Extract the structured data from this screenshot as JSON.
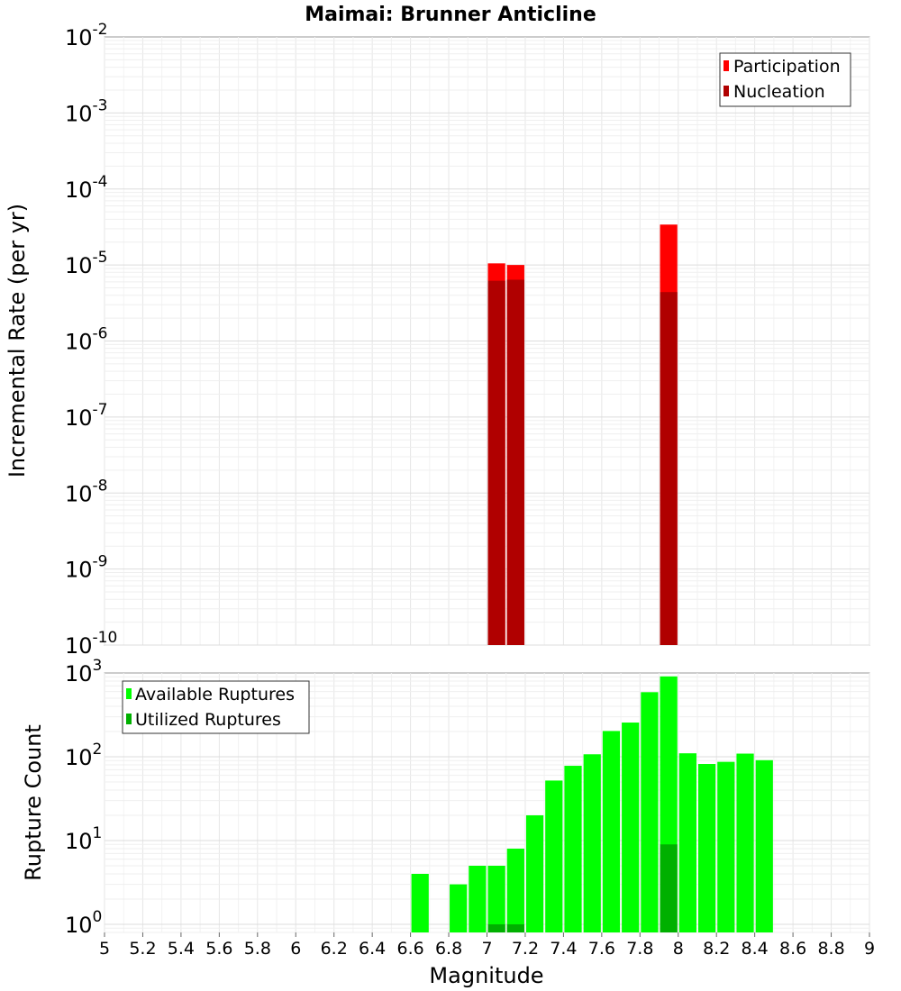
{
  "chart_data": [
    {
      "type": "bar",
      "scale": "log",
      "title": "Maimai: Brunner Anticline",
      "xlabel": "",
      "ylabel": "Incremental Rate (per yr)",
      "xlim": [
        5,
        9
      ],
      "ylim_exp": [
        -10,
        -2
      ],
      "y_tick_base": "10",
      "y_tick_exponents": [
        "-10",
        "-9",
        "-8",
        "-7",
        "-6",
        "-5",
        "-4",
        "-3",
        "-2"
      ],
      "bin_width": 0.1,
      "series": [
        {
          "name": "Participation",
          "color": "#ff0000",
          "points": [
            {
              "x": 7.05,
              "y": 1.05e-05
            },
            {
              "x": 7.15,
              "y": 1e-05
            },
            {
              "x": 7.95,
              "y": 3.4e-05
            }
          ]
        },
        {
          "name": "Nucleation",
          "color": "#b00000",
          "points": [
            {
              "x": 7.05,
              "y": 6.2e-06
            },
            {
              "x": 7.15,
              "y": 6.4e-06
            },
            {
              "x": 7.95,
              "y": 4.4e-06
            }
          ]
        }
      ],
      "legend": [
        "Participation",
        "Nucleation"
      ],
      "legend_position": "top-right"
    },
    {
      "type": "bar",
      "scale": "log",
      "xlabel": "Magnitude",
      "ylabel": "Rupture Count",
      "xlim": [
        5,
        9
      ],
      "x_ticks": [
        "5",
        "5.2",
        "5.4",
        "5.6",
        "5.8",
        "6",
        "6.2",
        "6.4",
        "6.6",
        "6.8",
        "7",
        "7.2",
        "7.4",
        "7.6",
        "7.8",
        "8",
        "8.2",
        "8.4",
        "8.6",
        "8.8",
        "9"
      ],
      "ylim": [
        0.8,
        1000
      ],
      "y_tick_base": "10",
      "y_tick_exponents": [
        "0",
        "1",
        "2",
        "3"
      ],
      "bin_width": 0.1,
      "series": [
        {
          "name": "Available Ruptures",
          "color": "#00ff00",
          "points": [
            {
              "x": 6.65,
              "y": 4
            },
            {
              "x": 6.85,
              "y": 3
            },
            {
              "x": 6.95,
              "y": 5
            },
            {
              "x": 7.05,
              "y": 5
            },
            {
              "x": 7.15,
              "y": 8
            },
            {
              "x": 7.25,
              "y": 20
            },
            {
              "x": 7.35,
              "y": 52
            },
            {
              "x": 7.45,
              "y": 78
            },
            {
              "x": 7.55,
              "y": 107
            },
            {
              "x": 7.65,
              "y": 203
            },
            {
              "x": 7.75,
              "y": 256
            },
            {
              "x": 7.85,
              "y": 590
            },
            {
              "x": 7.95,
              "y": 910
            },
            {
              "x": 8.05,
              "y": 110
            },
            {
              "x": 8.15,
              "y": 82
            },
            {
              "x": 8.25,
              "y": 87
            },
            {
              "x": 8.35,
              "y": 109
            },
            {
              "x": 8.45,
              "y": 91
            }
          ]
        },
        {
          "name": "Utilized Ruptures",
          "color": "#00b000",
          "points": [
            {
              "x": 7.05,
              "y": 1
            },
            {
              "x": 7.15,
              "y": 1
            },
            {
              "x": 7.95,
              "y": 9
            }
          ]
        }
      ],
      "legend": [
        "Available Ruptures",
        "Utilized Ruptures"
      ],
      "legend_position": "top-left"
    }
  ]
}
